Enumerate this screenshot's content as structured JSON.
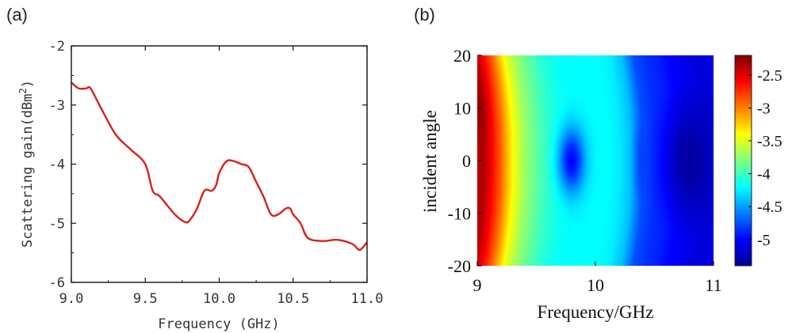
{
  "panels": {
    "a": {
      "label": "(a)"
    },
    "b": {
      "label": "(b)"
    }
  },
  "chart_data": [
    {
      "type": "line",
      "title": "",
      "xlabel": "Frequency (GHz)",
      "ylabel": "Scattering gain(dBm",
      "ylabel_sup": "2",
      "ylabel_close": ")",
      "xlim": [
        9.0,
        11.0
      ],
      "ylim": [
        -6,
        -2
      ],
      "xticks": [
        9.0,
        9.5,
        10.0,
        10.5,
        11.0
      ],
      "xtick_labels": [
        "9.0",
        "9.5",
        "10.0",
        "10.5",
        "11.0"
      ],
      "yticks": [
        -6,
        -5,
        -4,
        -3,
        -2
      ],
      "ytick_labels": [
        "-6",
        "-5",
        "-4",
        "-3",
        "-2"
      ],
      "grid": false,
      "series": [
        {
          "color": "#d9201a",
          "x": [
            9.0,
            9.05,
            9.1,
            9.13,
            9.2,
            9.3,
            9.4,
            9.5,
            9.55,
            9.6,
            9.7,
            9.77,
            9.8,
            9.85,
            9.9,
            9.95,
            9.98,
            10.0,
            10.05,
            10.1,
            10.15,
            10.2,
            10.25,
            10.3,
            10.35,
            10.4,
            10.45,
            10.48,
            10.5,
            10.55,
            10.6,
            10.7,
            10.8,
            10.9,
            10.95,
            11.0
          ],
          "y": [
            -2.62,
            -2.72,
            -2.72,
            -2.72,
            -3.05,
            -3.5,
            -3.75,
            -4.0,
            -4.45,
            -4.55,
            -4.85,
            -4.98,
            -4.95,
            -4.75,
            -4.45,
            -4.45,
            -4.35,
            -4.15,
            -3.95,
            -3.95,
            -4.0,
            -4.05,
            -4.3,
            -4.55,
            -4.85,
            -4.85,
            -4.75,
            -4.75,
            -4.85,
            -5.0,
            -5.25,
            -5.3,
            -5.28,
            -5.35,
            -5.45,
            -5.32
          ]
        }
      ]
    },
    {
      "type": "heatmap",
      "title": "",
      "xlabel": "Frequency/GHz",
      "ylabel": "incident angle",
      "xlim": [
        9,
        11
      ],
      "ylim": [
        -20,
        20
      ],
      "xticks": [
        9,
        10,
        11
      ],
      "xtick_labels": [
        "9",
        "10",
        "11"
      ],
      "yticks": [
        -20,
        -10,
        0,
        10,
        20
      ],
      "ytick_labels": [
        "-20",
        "-10",
        "0",
        "10",
        "20"
      ],
      "colormap": "jet",
      "colorbar": {
        "range": [
          -5.4,
          -2.2
        ],
        "ticks": [
          -5,
          -4.5,
          -4,
          -3.5,
          -3,
          -2.5
        ],
        "tick_labels": [
          "-5",
          "-4.5",
          "-4",
          "-3.5",
          "-3",
          "-2.5"
        ]
      },
      "x_profile": {
        "freq": [
          9.0,
          9.05,
          9.1,
          9.2,
          9.3,
          9.4,
          9.5,
          9.6,
          9.7,
          9.8,
          9.9,
          10.0,
          10.1,
          10.2,
          10.3,
          10.4,
          10.5,
          10.6,
          10.7,
          10.8,
          10.9,
          11.0
        ],
        "value": [
          -2.4,
          -2.35,
          -2.5,
          -2.9,
          -3.4,
          -3.7,
          -3.9,
          -4.05,
          -4.15,
          -4.2,
          -4.2,
          -4.2,
          -4.2,
          -4.25,
          -4.4,
          -4.75,
          -4.85,
          -4.9,
          -5.0,
          -5.05,
          -5.1,
          -5.1
        ]
      },
      "features": [
        {
          "type": "minimum",
          "freq": 9.8,
          "angle": 0,
          "value": -5.0,
          "freq_width": 0.11,
          "angle_width": 6
        },
        {
          "type": "minimum",
          "freq": 10.8,
          "angle": 0,
          "value": -5.3,
          "freq_width": 0.2,
          "angle_width": 10
        },
        {
          "type": "minimum",
          "freq": 10.4,
          "angle": 0,
          "value": -4.8,
          "freq_width": 0.06,
          "angle_width": 8
        }
      ]
    }
  ]
}
